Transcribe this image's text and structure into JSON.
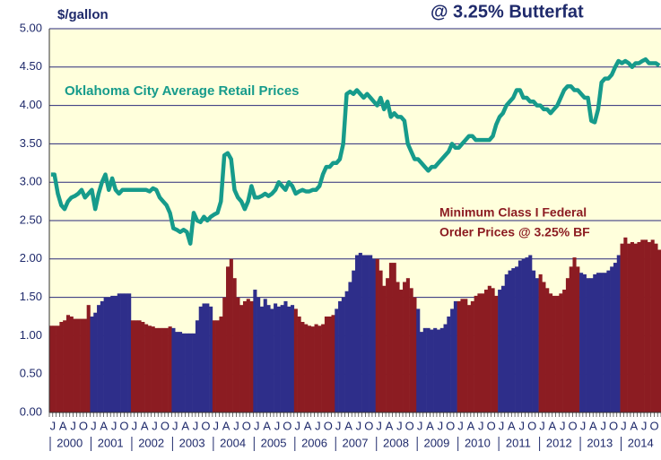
{
  "chart_data": {
    "type": "bar-line",
    "title": "@ 3.25% Butterfat",
    "y_label": "$/gallon",
    "years": [
      "2000",
      "2001",
      "2002",
      "2003",
      "2004",
      "2005",
      "2006",
      "2007",
      "2008",
      "2009",
      "2010",
      "2011",
      "2012",
      "2013",
      "2014"
    ],
    "month_labels": [
      "J",
      "A",
      "J",
      "O"
    ],
    "ylim": [
      0,
      5
    ],
    "yticks": [
      {
        "value": 0,
        "label": "0.00"
      },
      {
        "value": 0.5,
        "label": "0.50"
      },
      {
        "value": 1,
        "label": "1.00"
      },
      {
        "value": 1.5,
        "label": "1.50"
      },
      {
        "value": 2,
        "label": "2.00"
      },
      {
        "value": 2.5,
        "label": "2.50"
      },
      {
        "value": 3,
        "label": "3.00"
      },
      {
        "value": 3.5,
        "label": "3.50"
      },
      {
        "value": 4,
        "label": "4.00"
      },
      {
        "value": 4.5,
        "label": "4.50"
      },
      {
        "value": 5,
        "label": "5.00"
      }
    ],
    "grid": true,
    "series": [
      {
        "name": "Oklahoma City Average Retail Prices",
        "color": "#169b8b",
        "kind": "line",
        "values": [
          3.1,
          3.1,
          2.85,
          2.7,
          2.65,
          2.75,
          2.8,
          2.82,
          2.85,
          2.9,
          2.8,
          2.85,
          2.9,
          2.65,
          2.85,
          3.0,
          3.1,
          2.9,
          3.05,
          2.9,
          2.85,
          2.9,
          2.9,
          2.9,
          2.9,
          2.9,
          2.9,
          2.9,
          2.9,
          2.88,
          2.92,
          2.9,
          2.8,
          2.75,
          2.7,
          2.6,
          2.4,
          2.38,
          2.35,
          2.38,
          2.35,
          2.2,
          2.6,
          2.5,
          2.48,
          2.55,
          2.5,
          2.55,
          2.58,
          2.6,
          2.75,
          3.35,
          3.38,
          3.3,
          2.9,
          2.8,
          2.75,
          2.65,
          2.75,
          2.95,
          2.8,
          2.8,
          2.82,
          2.85,
          2.82,
          2.85,
          2.9,
          3.0,
          2.95,
          2.9,
          3.0,
          2.95,
          2.85,
          2.88,
          2.9,
          2.88,
          2.88,
          2.9,
          2.9,
          2.95,
          3.1,
          3.2,
          3.2,
          3.25,
          3.25,
          3.3,
          3.5,
          4.15,
          4.18,
          4.15,
          4.2,
          4.15,
          4.1,
          4.15,
          4.1,
          4.05,
          4.0,
          4.1,
          3.95,
          4.05,
          3.85,
          3.9,
          3.85,
          3.85,
          3.8,
          3.5,
          3.4,
          3.3,
          3.3,
          3.25,
          3.2,
          3.15,
          3.2,
          3.2,
          3.25,
          3.3,
          3.35,
          3.4,
          3.5,
          3.45,
          3.45,
          3.5,
          3.55,
          3.6,
          3.6,
          3.55,
          3.55,
          3.55,
          3.55,
          3.55,
          3.6,
          3.75,
          3.85,
          3.9,
          4.0,
          4.05,
          4.1,
          4.2,
          4.2,
          4.1,
          4.1,
          4.05,
          4.05,
          4.0,
          4.0,
          3.95,
          3.95,
          3.9,
          3.95,
          4.0,
          4.1,
          4.2,
          4.25,
          4.25,
          4.2,
          4.2,
          4.15,
          4.1,
          4.1,
          3.8,
          3.78,
          3.95,
          4.3,
          4.35,
          4.35,
          4.4,
          4.5,
          4.58,
          4.55,
          4.58,
          4.55,
          4.5,
          4.55,
          4.55,
          4.58,
          4.6,
          4.55,
          4.55,
          4.55,
          4.52
        ]
      },
      {
        "name": "Minimum Class I Federal Order Prices @ 3.25% BF",
        "colors": [
          "#8c1c22",
          "#2e2e8a"
        ],
        "kind": "bar",
        "values": [
          1.13,
          1.13,
          1.13,
          1.18,
          1.2,
          1.27,
          1.25,
          1.22,
          1.22,
          1.22,
          1.22,
          1.4,
          1.25,
          1.3,
          1.4,
          1.45,
          1.5,
          1.5,
          1.52,
          1.52,
          1.55,
          1.55,
          1.55,
          1.55,
          1.2,
          1.2,
          1.2,
          1.18,
          1.15,
          1.13,
          1.12,
          1.1,
          1.1,
          1.1,
          1.1,
          1.12,
          1.1,
          1.05,
          1.05,
          1.03,
          1.03,
          1.03,
          1.03,
          1.2,
          1.38,
          1.42,
          1.42,
          1.38,
          1.2,
          1.2,
          1.25,
          1.5,
          1.9,
          2.0,
          1.75,
          1.5,
          1.4,
          1.45,
          1.48,
          1.45,
          1.6,
          1.5,
          1.38,
          1.48,
          1.4,
          1.35,
          1.42,
          1.38,
          1.4,
          1.45,
          1.38,
          1.4,
          1.35,
          1.25,
          1.18,
          1.15,
          1.13,
          1.12,
          1.15,
          1.13,
          1.15,
          1.25,
          1.25,
          1.27,
          1.35,
          1.45,
          1.5,
          1.58,
          1.7,
          1.85,
          2.05,
          2.08,
          2.05,
          2.05,
          2.05,
          2.0,
          2.0,
          1.85,
          1.65,
          1.75,
          1.95,
          1.95,
          1.7,
          1.6,
          1.7,
          1.75,
          1.62,
          1.5,
          1.35,
          1.05,
          1.1,
          1.1,
          1.08,
          1.1,
          1.08,
          1.1,
          1.15,
          1.25,
          1.35,
          1.45,
          1.45,
          1.48,
          1.48,
          1.4,
          1.45,
          1.52,
          1.55,
          1.55,
          1.6,
          1.65,
          1.62,
          1.52,
          1.6,
          1.65,
          1.8,
          1.85,
          1.88,
          1.9,
          1.98,
          2.0,
          2.02,
          2.05,
          1.85,
          1.75,
          1.8,
          1.7,
          1.62,
          1.55,
          1.52,
          1.52,
          1.55,
          1.6,
          1.75,
          1.9,
          2.02,
          1.9,
          1.82,
          1.8,
          1.75,
          1.75,
          1.8,
          1.82,
          1.82,
          1.82,
          1.85,
          1.9,
          1.95,
          2.05,
          2.2,
          2.28,
          2.2,
          2.22,
          2.2,
          2.22,
          2.25,
          2.25,
          2.22,
          2.25,
          2.2,
          2.12
        ]
      }
    ],
    "line_label": "Oklahoma City Average Retail Prices",
    "bar_label_lines": [
      "Minimum Class I Federal",
      "Order Prices @ 3.25% BF"
    ]
  }
}
